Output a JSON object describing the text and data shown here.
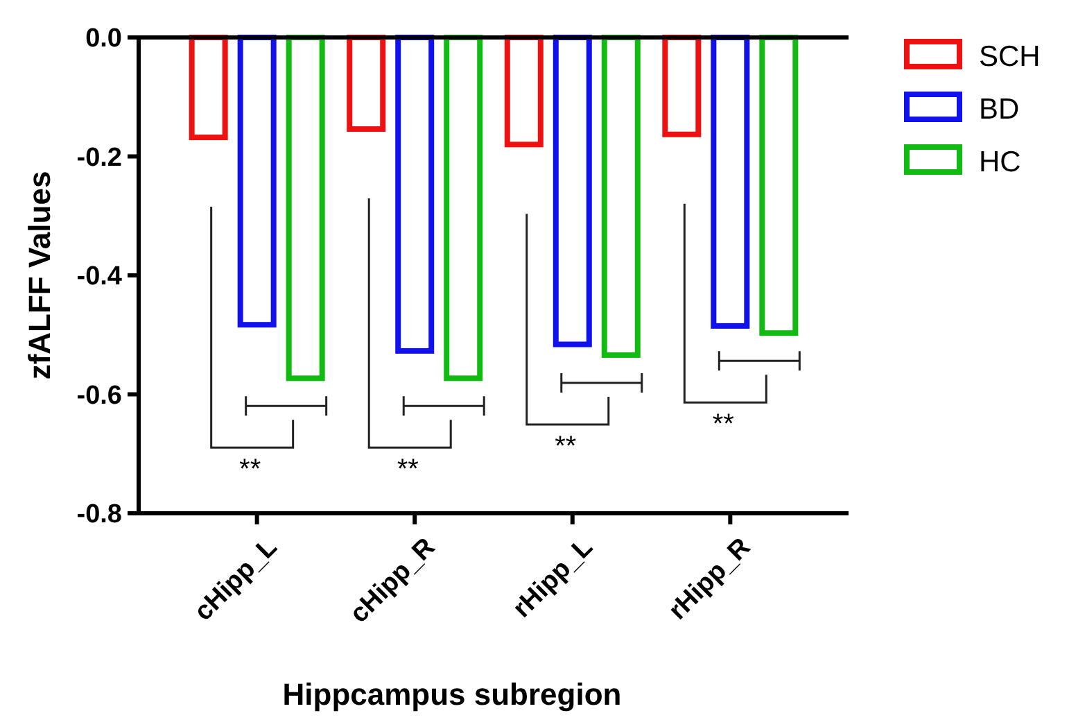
{
  "chart_data": {
    "type": "bar",
    "xlabel": "Hippcampus subregion",
    "ylabel": "zfALFF Values",
    "categories": [
      "cHipp_L",
      "cHipp_R",
      "rHipp_L",
      "rHipp_R"
    ],
    "series": [
      {
        "name": "SCH",
        "color": "#ee1111",
        "values": [
          -0.168,
          -0.154,
          -0.18,
          -0.163
        ]
      },
      {
        "name": "BD",
        "color": "#1111ee",
        "values": [
          -0.483,
          -0.527,
          -0.516,
          -0.485
        ]
      },
      {
        "name": "HC",
        "color": "#11bb11",
        "values": [
          -0.573,
          -0.573,
          -0.534,
          -0.497
        ]
      }
    ],
    "ylim": [
      -0.8,
      0
    ],
    "yticks": [
      {
        "value": 0,
        "label": "0.0"
      },
      -0.2,
      -0.4,
      -0.6,
      -0.8
    ],
    "legend": "top right",
    "grid": false,
    "annotations": [
      "**",
      "**",
      "**",
      "**"
    ]
  }
}
